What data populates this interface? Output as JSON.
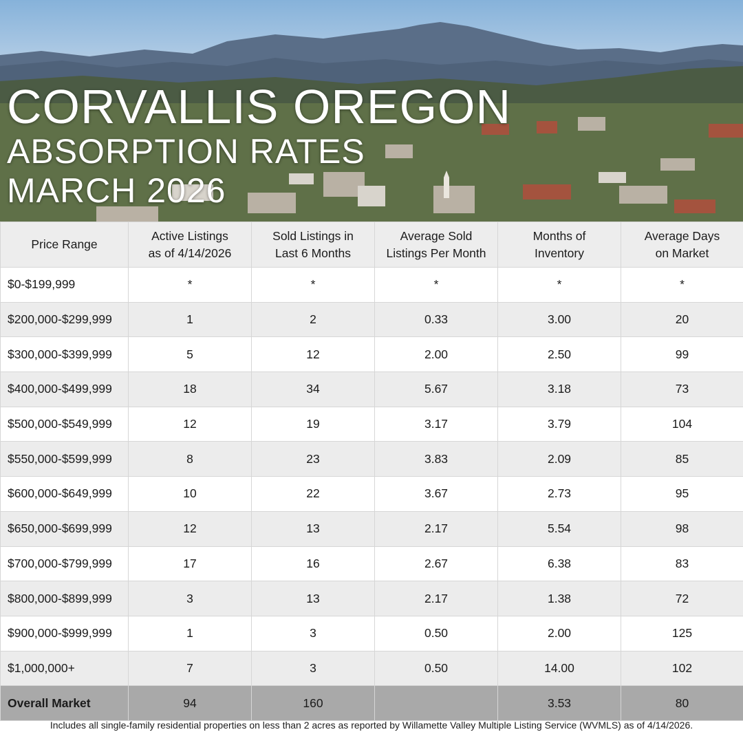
{
  "header": {
    "title_line1": "CORVALLIS OREGON",
    "title_line2": "ABSORPTION RATES",
    "title_line3": "MARCH 2026"
  },
  "table": {
    "columns": [
      "Price Range",
      "Active Listings as of 4/14/2026",
      "Sold Listings in Last 6 Months",
      "Average Sold Listings Per Month",
      "Months of Inventory",
      "Average Days on Market"
    ],
    "column_lines": [
      [
        "Price Range"
      ],
      [
        "Active Listings",
        "as of 4/14/2026"
      ],
      [
        "Sold Listings in",
        "Last 6 Months"
      ],
      [
        "Average Sold",
        "Listings Per Month"
      ],
      [
        "Months of",
        "Inventory"
      ],
      [
        "Average Days",
        "on Market"
      ]
    ],
    "rows": [
      [
        "$0-$199,999",
        "*",
        "*",
        "*",
        "*",
        "*"
      ],
      [
        "$200,000-$299,999",
        "1",
        "2",
        "0.33",
        "3.00",
        "20"
      ],
      [
        "$300,000-$399,999",
        "5",
        "12",
        "2.00",
        "2.50",
        "99"
      ],
      [
        "$400,000-$499,999",
        "18",
        "34",
        "5.67",
        "3.18",
        "73"
      ],
      [
        "$500,000-$549,999",
        "12",
        "19",
        "3.17",
        "3.79",
        "104"
      ],
      [
        "$550,000-$599,999",
        "8",
        "23",
        "3.83",
        "2.09",
        "85"
      ],
      [
        "$600,000-$649,999",
        "10",
        "22",
        "3.67",
        "2.73",
        "95"
      ],
      [
        "$650,000-$699,999",
        "12",
        "13",
        "2.17",
        "5.54",
        "98"
      ],
      [
        "$700,000-$799,999",
        "17",
        "16",
        "2.67",
        "6.38",
        "83"
      ],
      [
        "$800,000-$899,999",
        "3",
        "13",
        "2.17",
        "1.38",
        "72"
      ],
      [
        "$900,000-$999,999",
        "1",
        "3",
        "0.50",
        "2.00",
        "125"
      ],
      [
        "$1,000,000+",
        "7",
        "3",
        "0.50",
        "14.00",
        "102"
      ]
    ],
    "total": [
      "Overall Market",
      "94",
      "160",
      "",
      "3.53",
      "80"
    ]
  },
  "footnote": "Includes all single-family residential properties on less than 2 acres as reported by Willamette Valley Multiple Listing Service (WVMLS) as of 4/14/2026.",
  "colors": {
    "header_bg": "#ededed",
    "row_alt_bg": "#ececec",
    "total_bg": "#a9a9a9",
    "title_text": "#ffffff"
  },
  "hero_image": "city-skyline-with-mountain-photo"
}
